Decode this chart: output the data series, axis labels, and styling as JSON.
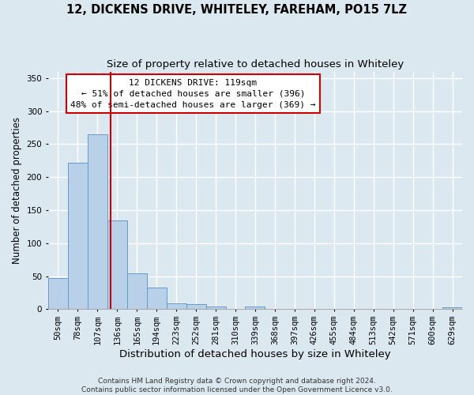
{
  "title": "12, DICKENS DRIVE, WHITELEY, FAREHAM, PO15 7LZ",
  "subtitle": "Size of property relative to detached houses in Whiteley",
  "xlabel": "Distribution of detached houses by size in Whiteley",
  "ylabel": "Number of detached properties",
  "footer_line1": "Contains HM Land Registry data © Crown copyright and database right 2024.",
  "footer_line2": "Contains public sector information licensed under the Open Government Licence v3.0.",
  "bin_labels": [
    "50sqm",
    "78sqm",
    "107sqm",
    "136sqm",
    "165sqm",
    "194sqm",
    "223sqm",
    "252sqm",
    "281sqm",
    "310sqm",
    "339sqm",
    "368sqm",
    "397sqm",
    "426sqm",
    "455sqm",
    "484sqm",
    "513sqm",
    "542sqm",
    "571sqm",
    "600sqm",
    "629sqm"
  ],
  "bar_values": [
    47,
    222,
    265,
    135,
    54,
    33,
    9,
    7,
    4,
    0,
    4,
    0,
    0,
    0,
    0,
    0,
    0,
    0,
    0,
    0,
    3
  ],
  "bar_color": "#b8d0e8",
  "bar_edge_color": "#6699cc",
  "red_line_x": 2.67,
  "annotation_title": "12 DICKENS DRIVE: 119sqm",
  "annotation_line1": "← 51% of detached houses are smaller (396)",
  "annotation_line2": "48% of semi-detached houses are larger (369) →",
  "annotation_box_color": "#ffffff",
  "annotation_box_edge": "#cc0000",
  "red_line_color": "#cc0000",
  "ylim": [
    0,
    360
  ],
  "yticks": [
    0,
    50,
    100,
    150,
    200,
    250,
    300,
    350
  ],
  "background_color": "#dce8f0",
  "grid_color": "#ffffff",
  "title_fontsize": 10.5,
  "subtitle_fontsize": 9.5,
  "ylabel_fontsize": 8.5,
  "xlabel_fontsize": 9.5,
  "tick_fontsize": 7.5,
  "footer_fontsize": 6.5
}
